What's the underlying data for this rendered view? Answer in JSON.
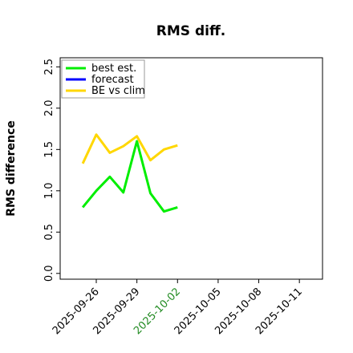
{
  "chart_data": {
    "type": "line",
    "title": "RMS diff.",
    "ylabel": "RMS difference",
    "x": [
      "2025-09-25",
      "2025-09-26",
      "2025-09-27",
      "2025-09-28",
      "2025-09-29",
      "2025-09-30",
      "2025-10-01",
      "2025-10-02"
    ],
    "series": [
      {
        "name": "best est.",
        "color": "#00ee00",
        "values": [
          0.8,
          1.0,
          1.17,
          0.98,
          1.6,
          0.97,
          0.75,
          0.8
        ]
      },
      {
        "name": "forecast",
        "color": "#0000ff",
        "values": [
          null,
          null,
          null,
          null,
          null,
          null,
          null,
          null
        ]
      },
      {
        "name": "BE vs clim",
        "color": "#ffd700",
        "values": [
          1.33,
          1.68,
          1.46,
          1.54,
          1.66,
          1.37,
          1.5,
          1.55
        ]
      }
    ],
    "xlim": [
      "2025-09-23T08:00Z",
      "2025-10-12T17:00Z"
    ],
    "xticks": [
      "2025-09-26",
      "2025-09-29",
      "2025-10-02",
      "2025-10-05",
      "2025-10-08",
      "2025-10-11"
    ],
    "xtick_colors": [
      "#000000",
      "#000000",
      "#228b22",
      "#000000",
      "#000000",
      "#000000"
    ],
    "ylim": [
      -0.07,
      2.61
    ],
    "yticks": [
      {
        "value": 0,
        "label": "0.0"
      },
      {
        "value": 0.5,
        "label": "0.5"
      },
      {
        "value": 1,
        "label": "1.0"
      },
      {
        "value": 1.5,
        "label": "1.5"
      },
      {
        "value": 2,
        "label": "2.0"
      },
      {
        "value": 2.5,
        "label": "2.5"
      }
    ],
    "legend": "upper left",
    "grid": false
  }
}
